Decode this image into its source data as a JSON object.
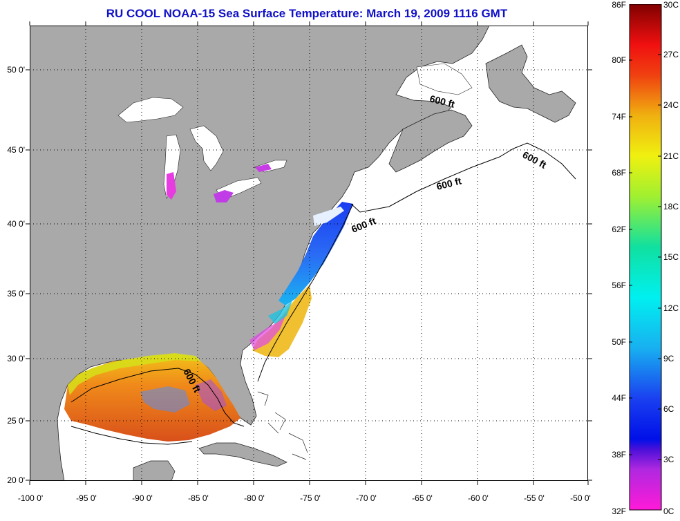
{
  "title": "RU COOL  NOAA-15  Sea Surface Temperature:  March 19, 2009 1116 GMT",
  "lat_ticks": [
    "50 0'",
    "45 0'",
    "40 0'",
    "35 0'",
    "30 0'",
    "25 0'",
    "20 0'"
  ],
  "lon_ticks": [
    "-100 0'",
    "-95 0'",
    "-90 0'",
    "-85 0'",
    "-80 0'",
    "-75 0'",
    "-70 0'",
    "-65 0'",
    "-60 0'",
    "-55 0'",
    "-50 0'"
  ],
  "contour_labels": [
    "600 ft",
    "600 ft",
    "600 ft",
    "600 ft",
    "600 ft"
  ],
  "colorbar": {
    "fahrenheit": [
      "86F",
      "80F",
      "74F",
      "68F",
      "62F",
      "56F",
      "50F",
      "44F",
      "38F",
      "32F"
    ],
    "celsius": [
      "30C",
      "27C",
      "24C",
      "21C",
      "18C",
      "15C",
      "12C",
      "9C",
      "6C",
      "3C",
      "0C"
    ]
  },
  "colors": {
    "land": "#a9a9a9",
    "ocean_nodata": "#ffffff",
    "title": "#1010c8",
    "grid": "#000000"
  }
}
